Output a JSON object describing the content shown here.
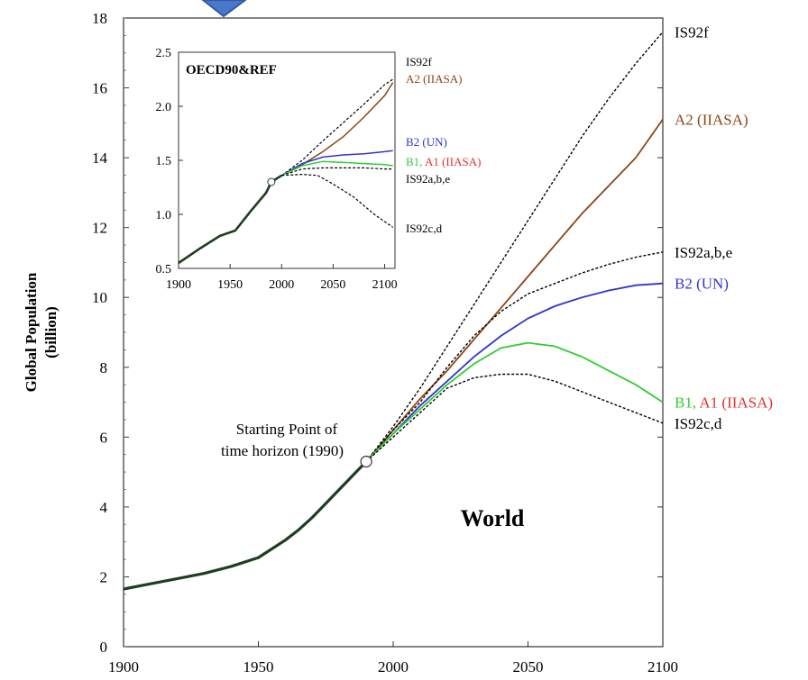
{
  "chart_data": [
    {
      "type": "line",
      "title": "World",
      "ylabel": "Global Population\n(billion)",
      "xlabel": "",
      "xlim": [
        1900,
        2100
      ],
      "ylim": [
        0,
        18
      ],
      "xticks": [
        1900,
        1950,
        2000,
        2050,
        2100
      ],
      "yticks": [
        0,
        2,
        4,
        6,
        8,
        10,
        12,
        14,
        16,
        18
      ],
      "grid": false,
      "legend": "labels at right end of each line",
      "historical": {
        "name": "",
        "color": "#1f3d1f",
        "x": [
          1900,
          1910,
          1920,
          1930,
          1940,
          1950,
          1955,
          1960,
          1965,
          1970,
          1975,
          1980,
          1985,
          1990
        ],
        "y": [
          1.65,
          1.8,
          1.95,
          2.1,
          2.3,
          2.55,
          2.8,
          3.05,
          3.35,
          3.7,
          4.1,
          4.5,
          4.9,
          5.3
        ]
      },
      "series": [
        {
          "name": "IS92f",
          "color": "#000000",
          "dashed": true,
          "x": [
            1990,
            2000,
            2010,
            2020,
            2030,
            2040,
            2050,
            2060,
            2070,
            2080,
            2090,
            2100
          ],
          "y": [
            5.3,
            6.3,
            7.4,
            8.6,
            9.8,
            11.0,
            12.2,
            13.4,
            14.6,
            15.7,
            16.7,
            17.6
          ]
        },
        {
          "name": "A2 (IIASA)",
          "color": "#8b4513",
          "dashed": false,
          "x": [
            1990,
            2000,
            2010,
            2020,
            2030,
            2040,
            2050,
            2060,
            2070,
            2080,
            2090,
            2100
          ],
          "y": [
            5.3,
            6.2,
            7.1,
            7.9,
            8.8,
            9.7,
            10.6,
            11.5,
            12.4,
            13.2,
            14.0,
            15.1
          ]
        },
        {
          "name": "IS92a,b,e",
          "color": "#000000",
          "dashed": true,
          "x": [
            1990,
            2000,
            2010,
            2020,
            2030,
            2040,
            2050,
            2060,
            2070,
            2080,
            2090,
            2100
          ],
          "y": [
            5.3,
            6.2,
            7.0,
            8.0,
            8.9,
            9.6,
            10.1,
            10.4,
            10.7,
            10.95,
            11.15,
            11.3
          ]
        },
        {
          "name": "B2 (UN)",
          "color": "#3333cc",
          "dashed": false,
          "x": [
            1990,
            2000,
            2010,
            2020,
            2030,
            2040,
            2050,
            2060,
            2070,
            2080,
            2090,
            2100
          ],
          "y": [
            5.3,
            6.1,
            6.9,
            7.6,
            8.3,
            8.9,
            9.4,
            9.75,
            10.0,
            10.2,
            10.35,
            10.4
          ]
        },
        {
          "name": "B1, A1 (IIASA)",
          "color": "#33cc33",
          "dashed": false,
          "x": [
            1990,
            2000,
            2010,
            2020,
            2030,
            2040,
            2050,
            2060,
            2070,
            2080,
            2090,
            2100
          ],
          "y": [
            5.3,
            6.1,
            6.8,
            7.5,
            8.1,
            8.55,
            8.7,
            8.6,
            8.3,
            7.9,
            7.5,
            7.0
          ]
        },
        {
          "name": "IS92c,d",
          "color": "#000000",
          "dashed": true,
          "x": [
            1990,
            2000,
            2010,
            2020,
            2030,
            2040,
            2050,
            2060,
            2070,
            2080,
            2090,
            2100
          ],
          "y": [
            5.3,
            6.0,
            6.7,
            7.4,
            7.7,
            7.8,
            7.8,
            7.6,
            7.3,
            7.0,
            6.7,
            6.4
          ]
        }
      ],
      "series_label_colors": {
        "B1, A1 (IIASA)": [
          "#33cc33",
          "#e03030"
        ]
      },
      "annotations": [
        {
          "text": "Starting Point of",
          "line": 1
        },
        {
          "text": "time horizon (1990)",
          "line": 2
        }
      ],
      "start_point": {
        "x": 1990,
        "y": 5.3
      }
    },
    {
      "type": "line",
      "title": "OECD90&REF",
      "xlim": [
        1900,
        2110
      ],
      "ylim": [
        0.5,
        2.5
      ],
      "xticks": [
        1900,
        1950,
        2000,
        2050,
        2100
      ],
      "yticks": [
        0.5,
        1.0,
        1.5,
        2.0,
        2.5
      ],
      "ytick_labels": [
        "0.5",
        "1.0",
        "1.5",
        "2.0",
        "2.5"
      ],
      "historical": {
        "name": "",
        "color": "#1f3d1f",
        "x": [
          1900,
          1920,
          1940,
          1955,
          1970,
          1985,
          1990,
          2000
        ],
        "y": [
          0.55,
          0.68,
          0.8,
          0.85,
          1.03,
          1.2,
          1.3,
          1.36
        ]
      },
      "series": [
        {
          "name": "IS92f",
          "color": "#000000",
          "dashed": true,
          "x": [
            2000,
            2020,
            2040,
            2060,
            2080,
            2100,
            2108
          ],
          "y": [
            1.36,
            1.5,
            1.68,
            1.85,
            2.02,
            2.2,
            2.25
          ]
        },
        {
          "name": "A2 (IIASA)",
          "color": "#8b4513",
          "dashed": false,
          "x": [
            2000,
            2020,
            2040,
            2060,
            2080,
            2100,
            2108
          ],
          "y": [
            1.36,
            1.46,
            1.58,
            1.72,
            1.9,
            2.1,
            2.22
          ]
        },
        {
          "name": "B2 (UN)",
          "color": "#3333cc",
          "dashed": false,
          "x": [
            2000,
            2020,
            2040,
            2060,
            2080,
            2100,
            2108
          ],
          "y": [
            1.36,
            1.47,
            1.53,
            1.55,
            1.56,
            1.58,
            1.59
          ]
        },
        {
          "name": "B1, A1 (IIASA)",
          "color": "#33cc33",
          "dashed": false,
          "x": [
            2000,
            2020,
            2040,
            2060,
            2080,
            2100,
            2108
          ],
          "y": [
            1.36,
            1.45,
            1.49,
            1.48,
            1.47,
            1.46,
            1.45
          ]
        },
        {
          "name": "IS92a,b,e",
          "color": "#000000",
          "dashed": true,
          "x": [
            2000,
            2020,
            2040,
            2060,
            2080,
            2100,
            2108
          ],
          "y": [
            1.36,
            1.42,
            1.43,
            1.43,
            1.43,
            1.42,
            1.42
          ]
        },
        {
          "name": "IS92c,d",
          "color": "#000000",
          "dashed": true,
          "x": [
            2000,
            2020,
            2035,
            2050,
            2070,
            2090,
            2108
          ],
          "y": [
            1.36,
            1.37,
            1.36,
            1.28,
            1.16,
            1.0,
            0.88
          ]
        }
      ],
      "series_label_colors": {
        "B1, A1 (IIASA)": [
          "#33cc33",
          "#e03030"
        ]
      },
      "start_point": {
        "x": 1990,
        "y": 1.3
      }
    }
  ],
  "decor": {
    "pointer_icon": "down-triangle-icon",
    "pointer_color": "#4a78c8"
  }
}
